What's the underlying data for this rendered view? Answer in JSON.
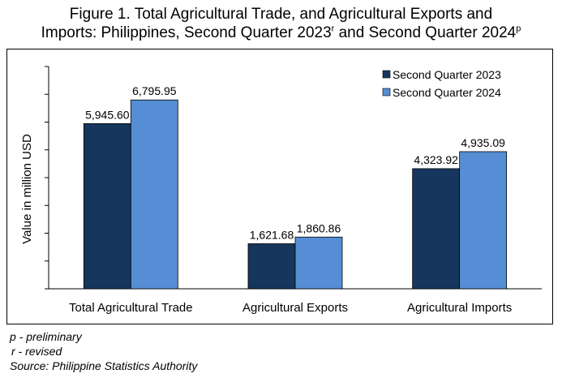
{
  "title": {
    "line1": "Figure 1. Total Agricultural Trade, and Agricultural Exports and",
    "line2_prefix": "Imports: Philippines, Second Quarter 2023",
    "line2_mark1": "r",
    "line2_middle": " and Second Quarter 2024",
    "line2_mark2": "p"
  },
  "notes": {
    "preliminary": "p - preliminary",
    "revised": "r - revised",
    "source": "Source: Philippine Statistics Authority"
  },
  "colors": {
    "series1": "#17365d",
    "series2": "#558ed5"
  },
  "chart_data": {
    "type": "bar",
    "title": "Figure 1. Total Agricultural Trade, and Agricultural Exports and Imports: Philippines, Second Quarter 2023r and Second Quarter 2024p",
    "xlabel": "",
    "ylabel": "Value in million USD",
    "categories": [
      "Total Agricultural Trade",
      "Agricultural Exports",
      "Agricultural Imports"
    ],
    "series": [
      {
        "name": "Second Quarter 2023",
        "values": [
          5945.6,
          1621.68,
          4323.92
        ],
        "labels": [
          "5,945.60",
          "1,621.68",
          "4,323.92"
        ]
      },
      {
        "name": "Second Quarter 2024",
        "values": [
          6795.95,
          1860.86,
          4935.09
        ],
        "labels": [
          "6,795.95",
          "1,860.86",
          "4,935.09"
        ]
      }
    ],
    "ylim": [
      0,
      8000
    ],
    "yticks": [
      0,
      1000,
      2000,
      3000,
      4000,
      5000,
      6000,
      7000,
      8000
    ],
    "tick_labels_shown": false,
    "grid": false,
    "legend": "top-right"
  }
}
